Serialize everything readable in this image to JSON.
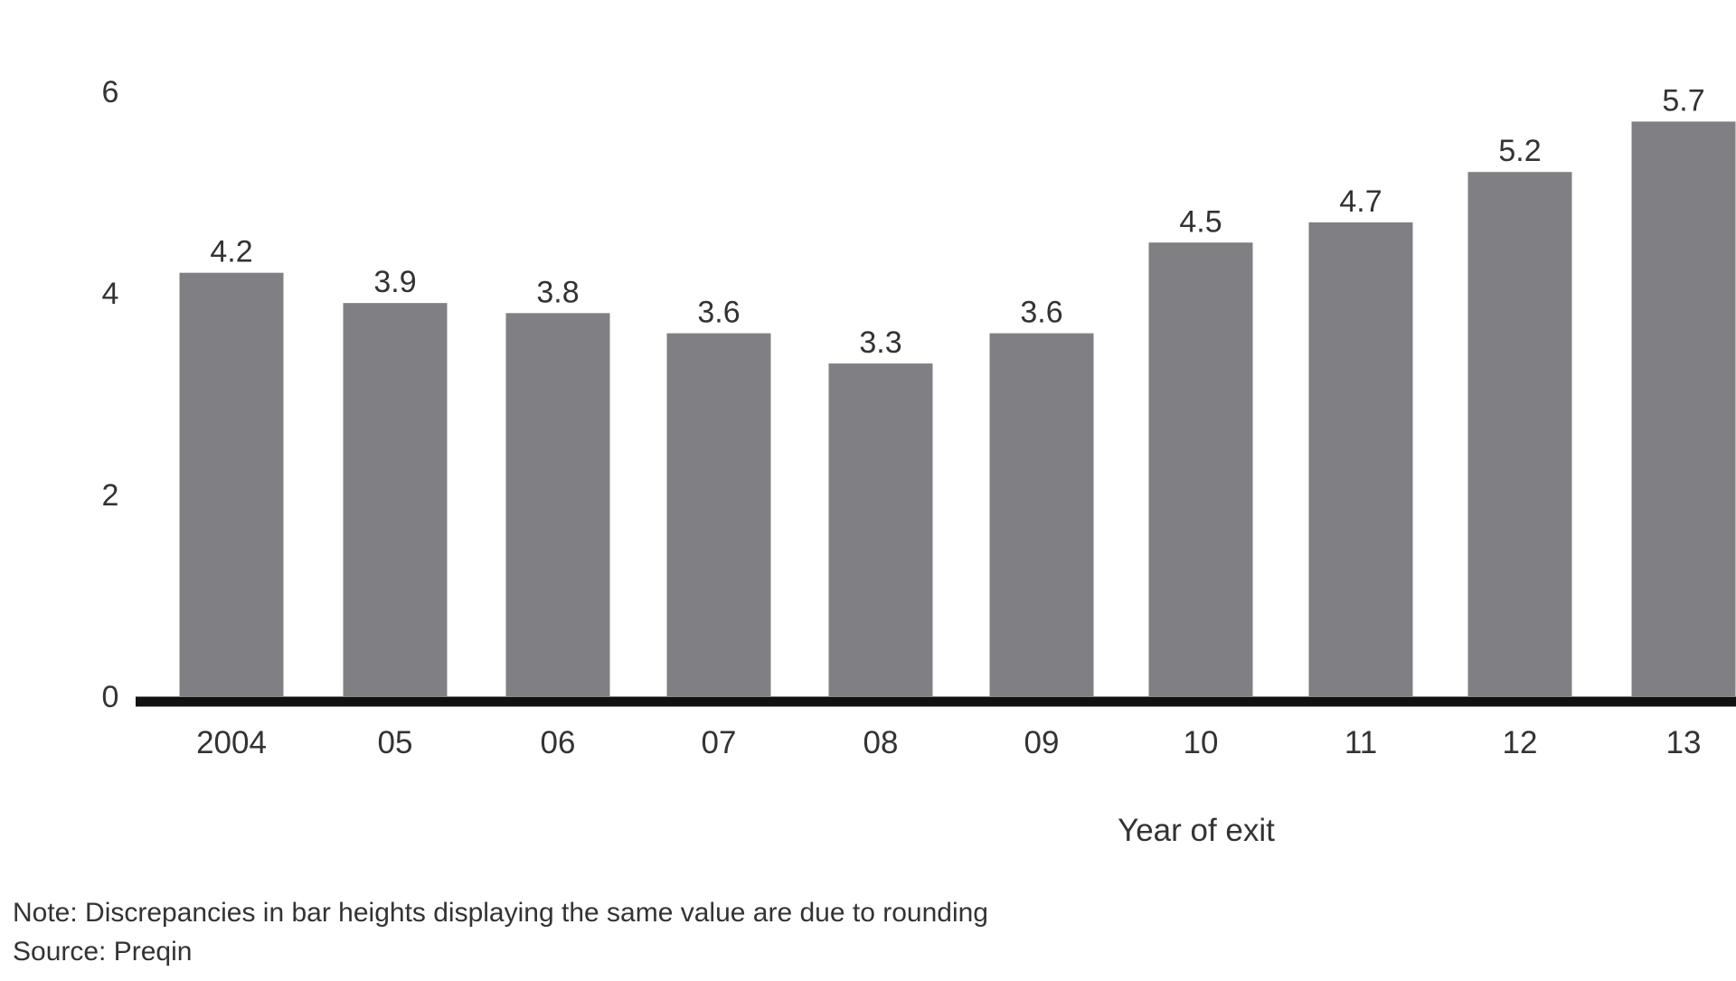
{
  "chart_data": {
    "type": "bar",
    "categories": [
      "2004",
      "05",
      "06",
      "07",
      "08",
      "09",
      "10",
      "11",
      "12",
      "13"
    ],
    "values": [
      4.2,
      3.9,
      3.8,
      3.6,
      3.3,
      3.6,
      4.5,
      4.7,
      5.2,
      5.7
    ],
    "data_labels": [
      "4.2",
      "3.9",
      "3.8",
      "3.6",
      "3.3",
      "3.6",
      "4.5",
      "4.7",
      "5.2",
      "5.7"
    ],
    "title": "",
    "xlabel": "Year of exit",
    "ylabel": "",
    "ylim": [
      0,
      6
    ],
    "yticks": [
      "0",
      "2",
      "4",
      "6"
    ],
    "grid": false,
    "legend": "none",
    "colors": {
      "bar": "#808084",
      "axis": "#111111",
      "text": "#333333"
    }
  },
  "footer": {
    "note": "Note: Discrepancies in bar heights displaying the same value are due to rounding",
    "source": "Source: Preqin"
  }
}
